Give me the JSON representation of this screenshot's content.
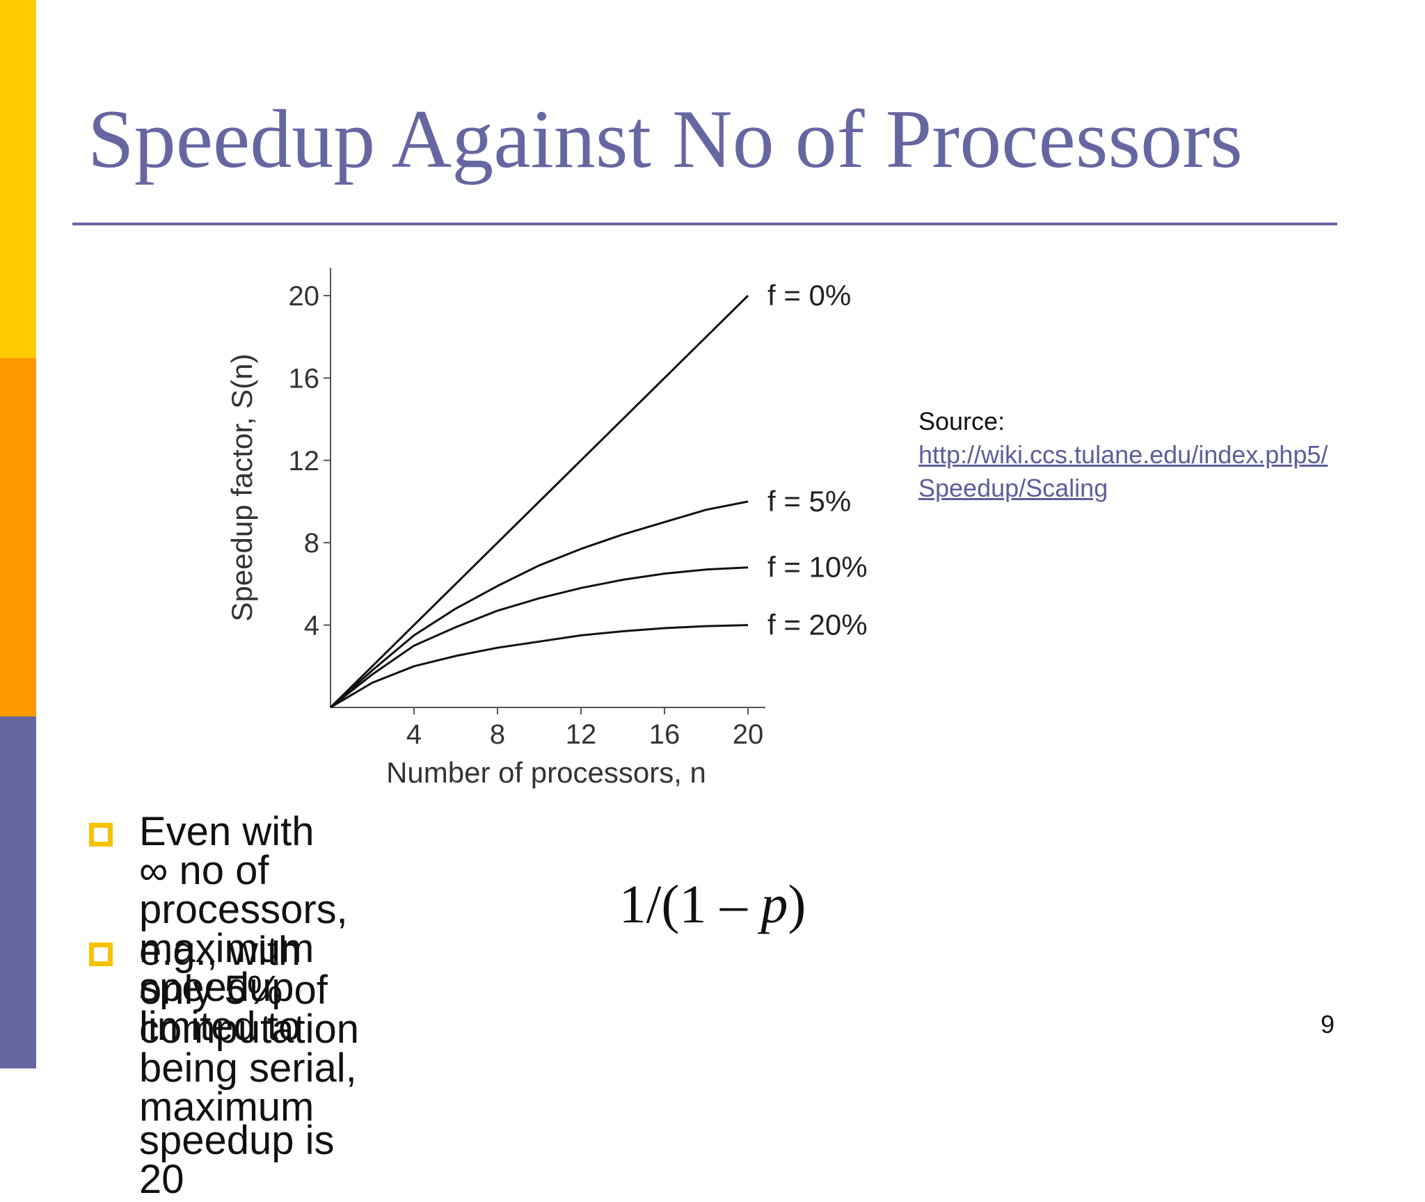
{
  "slide": {
    "title": "Speedup Against No of Processors",
    "source_label": "Source:",
    "source_link": "http://wiki.ccs.tulane.edu/index.php5/Speedup/Scaling",
    "source_link_line1": "http://wiki.ccs.tulane.edu/index.php5/",
    "source_link_line2": "Speedup/Scaling",
    "bullet1": "Even with ∞ no of processors, maximum speedup limited to",
    "formula_prefix": "1/(1 – ",
    "formula_var": "p",
    "formula_suffix": ")",
    "bullet2_line1": "e.g., with only 5% of computation being serial, maximum",
    "bullet2_line2": "speedup is 20",
    "page_number": "9",
    "colors": {
      "accent": "#6667a1",
      "bar_top": "#ffcc00",
      "bar_mid": "#ff9900",
      "bar_bot": "#6667a1",
      "bullet": "#f7c200"
    }
  },
  "chart_data": {
    "type": "line",
    "title": "",
    "xlabel": "Number of processors, n",
    "ylabel": "Speedup factor, S(n)",
    "xlim": [
      0,
      21
    ],
    "ylim": [
      0,
      21
    ],
    "xticks": [
      4,
      8,
      12,
      16,
      20
    ],
    "yticks": [
      4,
      8,
      12,
      16,
      20
    ],
    "grid": false,
    "legend": "inline labels at right end of each curve",
    "x": [
      0,
      1,
      2,
      4,
      6,
      8,
      10,
      12,
      14,
      16,
      18,
      20
    ],
    "series": [
      {
        "name": "f = 0%",
        "values": [
          0,
          1,
          2,
          4,
          6,
          8,
          10,
          12,
          14,
          16,
          18,
          20
        ]
      },
      {
        "name": "f = 5%",
        "values": [
          0,
          0.9,
          1.8,
          3.5,
          4.8,
          5.9,
          6.9,
          7.7,
          8.4,
          9.0,
          9.6,
          10.0
        ]
      },
      {
        "name": "f = 10%",
        "values": [
          0,
          0.8,
          1.6,
          3.0,
          3.9,
          4.7,
          5.3,
          5.8,
          6.2,
          6.5,
          6.7,
          6.8
        ]
      },
      {
        "name": "f = 20%",
        "values": [
          0,
          0.6,
          1.2,
          2.0,
          2.5,
          2.9,
          3.2,
          3.5,
          3.7,
          3.85,
          3.95,
          4.0
        ]
      }
    ]
  }
}
